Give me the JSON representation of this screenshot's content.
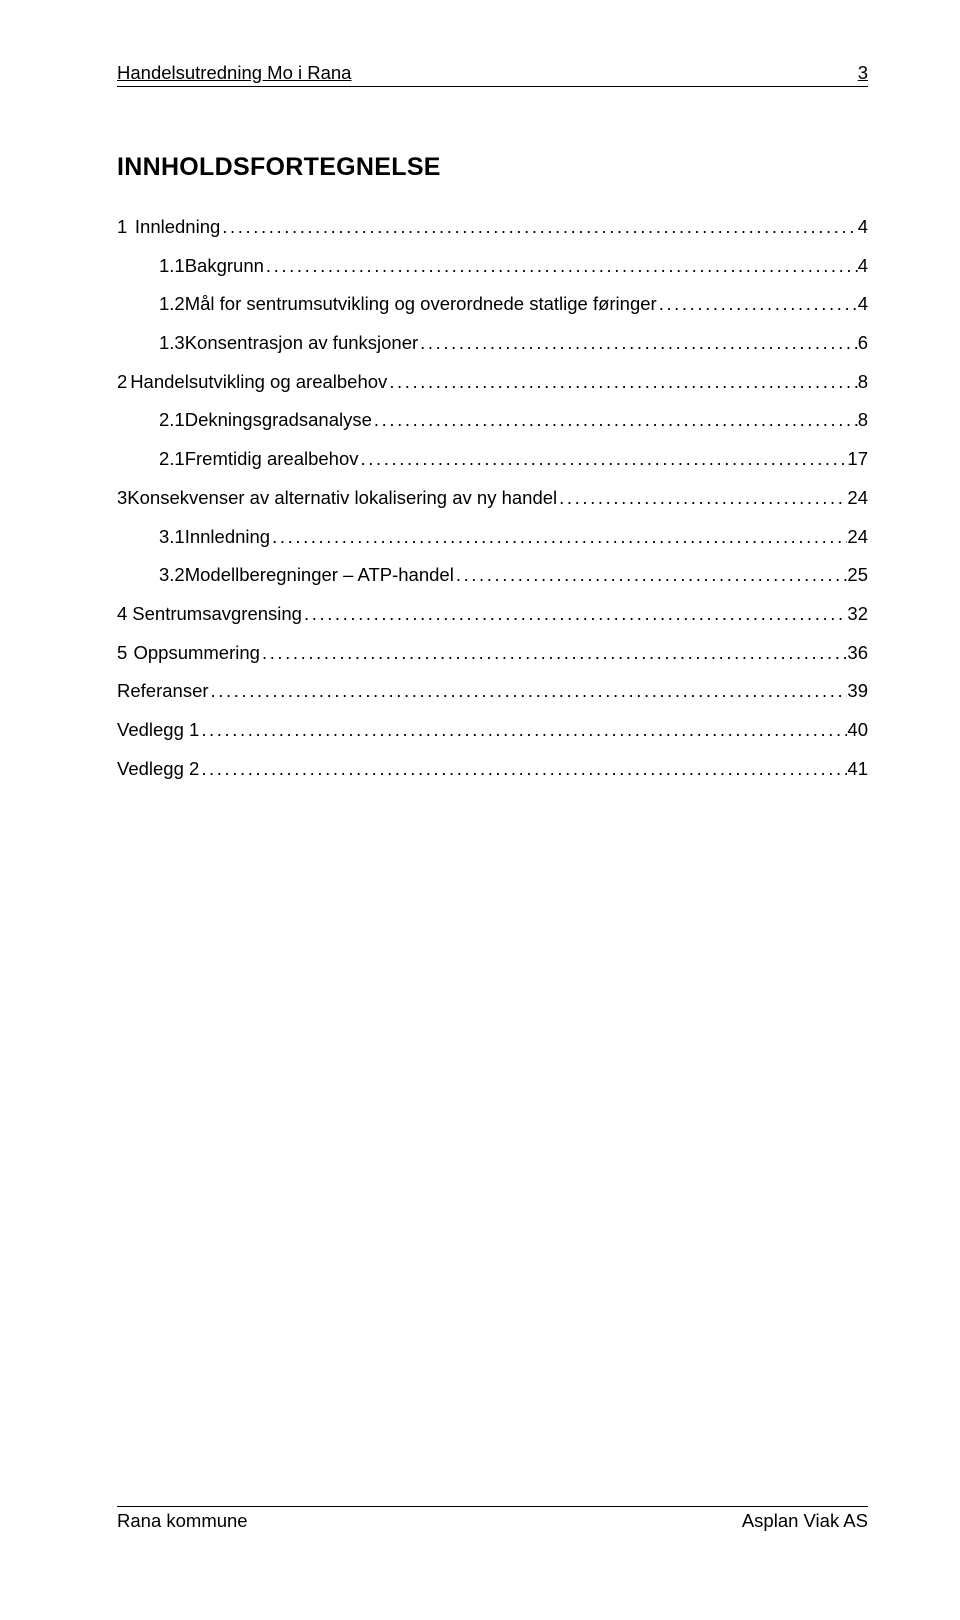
{
  "header": {
    "doc_title": "Handelsutredning Mo i Rana",
    "page_number": "3"
  },
  "toc": {
    "title": "INNHOLDSFORTEGNELSE",
    "rows": [
      {
        "level": 1,
        "num": "1",
        "label": "Innledning",
        "page": "4"
      },
      {
        "level": 2,
        "num": "1.1",
        "label": "Bakgrunn",
        "page": "4"
      },
      {
        "level": 2,
        "num": "1.2",
        "label": "Mål for sentrumsutvikling og overordnede statlige føringer",
        "page": "4"
      },
      {
        "level": 2,
        "num": "1.3",
        "label": "Konsentrasjon av funksjoner",
        "page": "6"
      },
      {
        "level": 1,
        "num": "2",
        "label": "Handelsutvikling og arealbehov",
        "page": "8"
      },
      {
        "level": 2,
        "num": "2.1",
        "label": "Dekningsgradsanalyse",
        "page": "8"
      },
      {
        "level": 2,
        "num": "2.1",
        "label": "Fremtidig arealbehov",
        "page": "17"
      },
      {
        "level": 1,
        "num": "3",
        "label": "Konsekvenser av alternativ lokalisering av ny handel",
        "page": "24"
      },
      {
        "level": 2,
        "num": "3.1",
        "label": "Innledning",
        "page": "24"
      },
      {
        "level": 2,
        "num": "3.2",
        "label": "Modellberegninger – ATP-handel",
        "page": "25"
      },
      {
        "level": 1,
        "num": "4",
        "label": "Sentrumsavgrensing",
        "page": "32"
      },
      {
        "level": 1,
        "num": "5",
        "label": "Oppsummering",
        "page": "36"
      },
      {
        "level": 0,
        "num": "",
        "label": "Referanser",
        "page": "39"
      },
      {
        "level": 0,
        "num": "",
        "label": "Vedlegg 1",
        "page": "40"
      },
      {
        "level": 0,
        "num": "",
        "label": "Vedlegg 2",
        "page": "41"
      }
    ]
  },
  "footer": {
    "left": "Rana kommune",
    "right": "Asplan Viak AS"
  }
}
